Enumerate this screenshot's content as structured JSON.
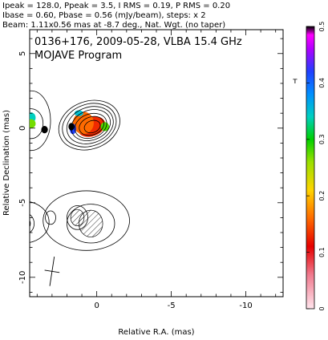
{
  "header": {
    "line1": "Ipeak = 128.0, Ppeak = 3.5, I RMS = 0.19, P RMS = 0.20",
    "line2": "Ibase = 0.60, Pbase = 0.56 (mJy/beam), steps: x 2",
    "line3": "Beam: 1.11x0.56 mas at -8.7 deg., Nat. Wgt. (no taper)"
  },
  "chart_data": {
    "type": "contour",
    "title": "0136+176, 2009-05-28, VLBA 15.4 GHz",
    "subtitle": "MOJAVE Program",
    "xlabel": "Relative R.A. (mas)",
    "ylabel": "Relative Declination (mas)",
    "xlim": [
      4.5,
      -12.5
    ],
    "ylim": [
      -11.3,
      6.6
    ],
    "xticks": [
      0,
      -5,
      -10
    ],
    "yticks": [
      5,
      0,
      -5,
      -10
    ],
    "colorbar": {
      "range": [
        0,
        0.5
      ],
      "ticks": [
        0,
        0.1,
        0.2,
        0.3,
        0.4,
        0.5
      ]
    },
    "beam": {
      "major_mas": 1.11,
      "minor_mas": 0.56,
      "pa_deg": -8.7,
      "x": 3.0,
      "y": -9.6
    },
    "contours": [
      {
        "cx": 0.5,
        "cy": 0.2,
        "rx": 2.1,
        "ry": 1.6,
        "rot": -20
      },
      {
        "cx": 0.5,
        "cy": 0.2,
        "rx": 1.85,
        "ry": 1.4,
        "rot": -20
      },
      {
        "cx": 0.45,
        "cy": 0.2,
        "rx": 1.6,
        "ry": 1.2,
        "rot": -20
      },
      {
        "cx": 0.4,
        "cy": 0.2,
        "rx": 1.35,
        "ry": 1.0,
        "rot": -20
      },
      {
        "cx": 0.4,
        "cy": 0.15,
        "rx": 1.1,
        "ry": 0.8,
        "rot": -20
      },
      {
        "cx": 0.35,
        "cy": 0.15,
        "rx": 0.85,
        "ry": 0.6,
        "rot": -20
      },
      {
        "cx": 0.3,
        "cy": 0.1,
        "rx": 0.55,
        "ry": 0.4,
        "rot": -20
      },
      {
        "cx": 4.4,
        "cy": 0.5,
        "rx": 1.3,
        "ry": 2.0,
        "rot": 0
      },
      {
        "cx": 4.4,
        "cy": 0.3,
        "rx": 0.8,
        "ry": 1.0,
        "rot": 0
      },
      {
        "cx": 0.7,
        "cy": -6.2,
        "rx": 2.9,
        "ry": 2.0,
        "rot": 0
      },
      {
        "cx": 0.4,
        "cy": -6.4,
        "rx": 1.6,
        "ry": 1.3,
        "rot": 0
      },
      {
        "cx": 1.3,
        "cy": -6.0,
        "rx": 0.7,
        "ry": 0.8,
        "rot": 0
      },
      {
        "cx": 4.9,
        "cy": -6.3,
        "rx": 1.7,
        "ry": 1.4,
        "rot": 0
      },
      {
        "cx": 4.8,
        "cy": -6.4,
        "rx": 0.6,
        "ry": 0.7,
        "rot": 0
      },
      {
        "cx": 3.1,
        "cy": -6.0,
        "rx": 0.35,
        "ry": 0.45,
        "rot": 0
      }
    ],
    "polarization_patches": [
      {
        "cx": 0.35,
        "cy": 0.1,
        "rx": 0.95,
        "ry": 0.65,
        "rot": -20,
        "value": 0.13
      },
      {
        "cx": 0.9,
        "cy": 0.35,
        "rx": 0.7,
        "ry": 0.75,
        "rot": 0,
        "value": 0.16
      },
      {
        "cx": -0.55,
        "cy": 0.1,
        "rx": 0.28,
        "ry": 0.3,
        "rot": 0,
        "value": 0.28
      },
      {
        "cx": 1.2,
        "cy": 1.0,
        "rx": 0.3,
        "ry": 0.2,
        "rot": 0,
        "value": 0.35
      },
      {
        "cx": 1.6,
        "cy": -0.05,
        "rx": 0.22,
        "ry": 0.35,
        "rot": 0,
        "value": 0.42
      },
      {
        "cx": 1.7,
        "cy": 0.1,
        "rx": 0.2,
        "ry": 0.25,
        "rot": 0,
        "value": 0.5
      },
      {
        "cx": 3.5,
        "cy": -0.1,
        "rx": 0.22,
        "ry": 0.25,
        "rot": 0,
        "value": 0.5
      },
      {
        "cx": 4.4,
        "cy": 0.7,
        "rx": 0.3,
        "ry": 0.35,
        "rot": 0,
        "value": 0.34
      },
      {
        "cx": 4.4,
        "cy": 0.3,
        "rx": 0.3,
        "ry": 0.3,
        "rot": 0,
        "value": 0.27
      }
    ]
  }
}
